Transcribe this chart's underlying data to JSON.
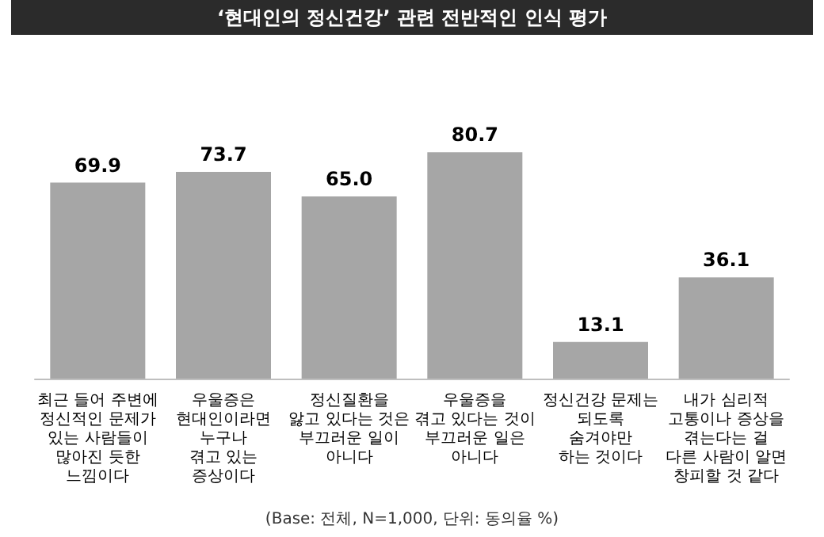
{
  "chart_data": {
    "type": "bar",
    "title": "‘현대인의 정신건강’ 관련 전반적인 인식 평가",
    "categories": [
      "최근 들어 주변에\n정신적인 문제가\n있는 사람들이\n많아진 듯한\n느낌이다",
      "우울증은\n현대인이라면\n누구나\n겪고 있는\n증상이다",
      "정신질환을\n앓고 있다는 것은\n부끄러운 일이\n아니다",
      "우울증을\n겪고 있다는 것이\n부끄러운 일은\n아니다",
      "정신건강 문제는\n되도록\n숨겨야만\n하는 것이다",
      "내가 심리적\n고통이나 증상을\n겪는다는 걸\n다른 사람이 알면\n창피할 것 같다"
    ],
    "values": [
      69.9,
      73.7,
      65.0,
      80.7,
      13.1,
      36.1
    ],
    "value_labels": [
      "69.9",
      "73.7",
      "65.0",
      "80.7",
      "13.1",
      "36.1"
    ],
    "color": "#a6a6a6",
    "annotations": [
      "(Base: 전체, N=1,000, 단위: 동의율 %)"
    ]
  }
}
